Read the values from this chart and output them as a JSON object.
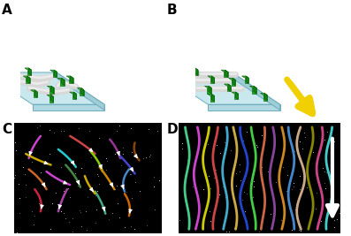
{
  "panel_labels": [
    "A",
    "B",
    "C",
    "D"
  ],
  "panel_label_fontsize": 11,
  "panel_label_color": "#000000",
  "background_color": "#ffffff",
  "figure_width": 3.97,
  "figure_height": 2.67,
  "platform_top_color": "#c8e8ee",
  "platform_left_color": "#a0ccd6",
  "platform_bottom_color": "#b0d8e2",
  "platform_edge_color": "#6aacbc",
  "green_top": "#44bb44",
  "green_front": "#22aa22",
  "green_right": "#118811",
  "green_edge": "#005500",
  "filament_main": "#d8d8d8",
  "filament_highlight": "#ffffff",
  "yellow_arrow": "#f0d000",
  "yellow_arrow_edge": "#a08000",
  "micro_bg": "#080808",
  "filament_colors_C": [
    "#cc44cc",
    "#993399",
    "#cc4444",
    "#884400",
    "#ccaa00",
    "#88cc00",
    "#4444cc",
    "#cc6622",
    "#22cccc",
    "#448844",
    "#cc8800",
    "#4488cc",
    "#cc2244",
    "#aa44aa",
    "#44aa88",
    "#cc6600"
  ],
  "filament_colors_D": [
    "#44cc88",
    "#cc44cc",
    "#cccc00",
    "#cc4444",
    "#44aacc",
    "#ccaa44",
    "#2244cc",
    "#44cc44",
    "#cc6644",
    "#884499",
    "#cc8822",
    "#4488cc",
    "#ccaa88",
    "#888800",
    "#cc4488",
    "#44cccc"
  ]
}
